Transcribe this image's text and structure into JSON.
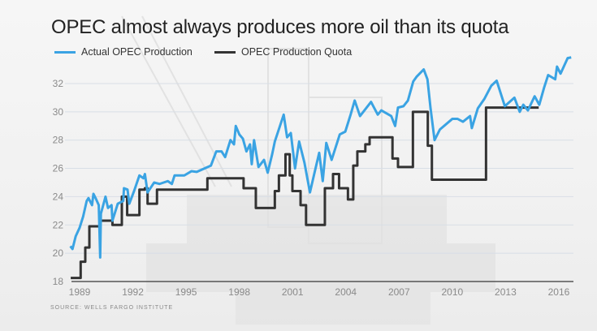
{
  "chart_data": {
    "type": "line",
    "title": "OPEC almost always produces more oil than its quota",
    "xlabel": "",
    "ylabel": "",
    "ylim": [
      18,
      34
    ],
    "xlim": [
      1988.5,
      2016.9
    ],
    "yticks": [
      "18",
      "20",
      "22",
      "24",
      "26",
      "28",
      "30",
      "32"
    ],
    "ytick_values": [
      18,
      20,
      22,
      24,
      26,
      28,
      30,
      32
    ],
    "xticks": [
      "1989",
      "1992",
      "1995",
      "1998",
      "2001",
      "2004",
      "2007",
      "2010",
      "2013",
      "2016"
    ],
    "xtick_values": [
      1989,
      1992,
      1995,
      1998,
      2001,
      2004,
      2007,
      2010,
      2013,
      2016
    ],
    "grid": true,
    "legend_placement": "top-left",
    "source": "SOURCE: WELLS FARGO INSTITUTE",
    "series": [
      {
        "name": "Actual OPEC Production",
        "color": "#3aa3e3",
        "step": false,
        "points": [
          [
            1988.48,
            20.5
          ],
          [
            1988.6,
            20.3
          ],
          [
            1988.78,
            21.2
          ],
          [
            1989.0,
            21.8
          ],
          [
            1989.2,
            22.6
          ],
          [
            1989.4,
            23.7
          ],
          [
            1989.5,
            23.9
          ],
          [
            1989.7,
            23.4
          ],
          [
            1989.78,
            24.2
          ],
          [
            1989.9,
            23.9
          ],
          [
            1990.08,
            23.4
          ],
          [
            1990.16,
            19.7
          ],
          [
            1990.2,
            22.8
          ],
          [
            1990.46,
            24.0
          ],
          [
            1990.6,
            23.2
          ],
          [
            1990.8,
            23.4
          ],
          [
            1990.85,
            22.3
          ],
          [
            1991.15,
            23.5
          ],
          [
            1991.46,
            23.7
          ],
          [
            1991.5,
            24.6
          ],
          [
            1991.7,
            24.5
          ],
          [
            1991.8,
            23.5
          ],
          [
            1992.07,
            24.4
          ],
          [
            1992.37,
            25.5
          ],
          [
            1992.6,
            25.3
          ],
          [
            1992.68,
            25.6
          ],
          [
            1992.83,
            24.3
          ],
          [
            1993.2,
            25.0
          ],
          [
            1993.5,
            24.9
          ],
          [
            1993.97,
            25.1
          ],
          [
            1994.2,
            24.9
          ],
          [
            1994.35,
            25.5
          ],
          [
            1994.9,
            25.5
          ],
          [
            1995.3,
            25.8
          ],
          [
            1995.6,
            25.75
          ],
          [
            1996.4,
            26.2
          ],
          [
            1996.7,
            27.2
          ],
          [
            1997.0,
            27.2
          ],
          [
            1997.2,
            26.8
          ],
          [
            1997.5,
            28.0
          ],
          [
            1997.7,
            27.7
          ],
          [
            1997.8,
            29.0
          ],
          [
            1998.0,
            28.4
          ],
          [
            1998.2,
            28.1
          ],
          [
            1998.4,
            27.2
          ],
          [
            1998.6,
            27.7
          ],
          [
            1998.7,
            26.3
          ],
          [
            1998.83,
            28.0
          ],
          [
            1999.08,
            26.1
          ],
          [
            1999.39,
            26.6
          ],
          [
            1999.6,
            25.7
          ],
          [
            1999.85,
            27.0
          ],
          [
            2000.0,
            27.9
          ],
          [
            2000.5,
            29.8
          ],
          [
            2000.69,
            28.2
          ],
          [
            2000.9,
            28.5
          ],
          [
            2001.14,
            26.0
          ],
          [
            2001.37,
            27.9
          ],
          [
            2001.67,
            26.4
          ],
          [
            2001.98,
            24.3
          ],
          [
            2002.2,
            25.5
          ],
          [
            2002.5,
            27.1
          ],
          [
            2002.7,
            25.1
          ],
          [
            2002.9,
            27.8
          ],
          [
            2003.2,
            26.6
          ],
          [
            2003.66,
            28.4
          ],
          [
            2003.97,
            28.6
          ],
          [
            2004.27,
            29.8
          ],
          [
            2004.5,
            30.8
          ],
          [
            2004.8,
            29.7
          ],
          [
            2005.42,
            30.7
          ],
          [
            2005.8,
            29.8
          ],
          [
            2006.0,
            30.1
          ],
          [
            2006.56,
            29.7
          ],
          [
            2006.78,
            29.0
          ],
          [
            2006.94,
            30.3
          ],
          [
            2007.25,
            30.4
          ],
          [
            2007.5,
            30.8
          ],
          [
            2007.8,
            32.15
          ],
          [
            2008.0,
            32.5
          ],
          [
            2008.39,
            33.0
          ],
          [
            2008.6,
            32.3
          ],
          [
            2008.77,
            30.3
          ],
          [
            2009.0,
            28.0
          ],
          [
            2009.3,
            28.75
          ],
          [
            2010.0,
            29.5
          ],
          [
            2010.3,
            29.5
          ],
          [
            2010.6,
            29.3
          ],
          [
            2011.0,
            29.7
          ],
          [
            2011.1,
            28.85
          ],
          [
            2011.44,
            30.25
          ],
          [
            2011.8,
            30.9
          ],
          [
            2012.2,
            31.85
          ],
          [
            2012.5,
            32.2
          ],
          [
            2012.96,
            30.4
          ],
          [
            2013.5,
            31.0
          ],
          [
            2013.8,
            30.0
          ],
          [
            2014.0,
            30.5
          ],
          [
            2014.26,
            30.1
          ],
          [
            2014.64,
            31.1
          ],
          [
            2014.9,
            30.5
          ],
          [
            2015.17,
            31.7
          ],
          [
            2015.4,
            32.6
          ],
          [
            2015.8,
            32.3
          ],
          [
            2015.9,
            33.2
          ],
          [
            2016.1,
            32.7
          ],
          [
            2016.5,
            33.8
          ],
          [
            2016.7,
            33.85
          ]
        ]
      },
      {
        "name": "OPEC Production Quota",
        "color": "#333333",
        "step": true,
        "points": [
          [
            1988.5,
            18.25
          ],
          [
            1989.06,
            19.4
          ],
          [
            1989.32,
            20.4
          ],
          [
            1989.55,
            21.9
          ],
          [
            1990.16,
            22.3
          ],
          [
            1990.85,
            22.0
          ],
          [
            1991.38,
            24.0
          ],
          [
            1991.68,
            22.7
          ],
          [
            1992.37,
            24.5
          ],
          [
            1992.68,
            24.6
          ],
          [
            1992.83,
            23.5
          ],
          [
            1993.36,
            24.5
          ],
          [
            1996.2,
            25.3
          ],
          [
            1998.24,
            24.6
          ],
          [
            1998.93,
            23.2
          ],
          [
            2000.0,
            24.4
          ],
          [
            2000.23,
            25.5
          ],
          [
            2000.6,
            27.0
          ],
          [
            2000.84,
            25.5
          ],
          [
            2000.99,
            24.4
          ],
          [
            2001.45,
            23.4
          ],
          [
            2001.76,
            22.0
          ],
          [
            2002.82,
            24.6
          ],
          [
            2003.28,
            25.6
          ],
          [
            2003.62,
            24.6
          ],
          [
            2004.12,
            23.8
          ],
          [
            2004.42,
            26.2
          ],
          [
            2004.65,
            27.2
          ],
          [
            2005.1,
            27.7
          ],
          [
            2005.34,
            28.2
          ],
          [
            2006.63,
            26.7
          ],
          [
            2006.94,
            26.1
          ],
          [
            2007.78,
            30.0
          ],
          [
            2008.62,
            27.6
          ],
          [
            2008.85,
            25.2
          ],
          [
            2011.9,
            30.3
          ],
          [
            2014.87,
            30.3
          ]
        ]
      }
    ]
  }
}
